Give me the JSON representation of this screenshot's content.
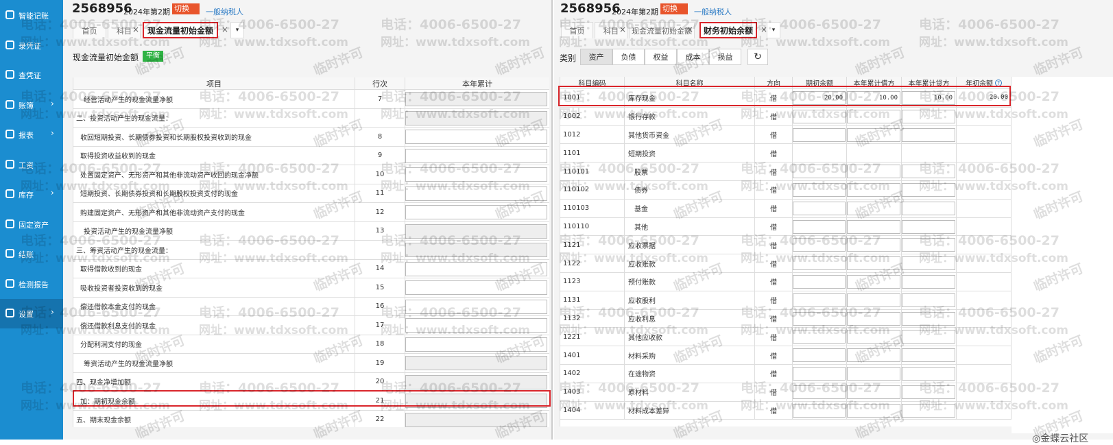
{
  "sidebar": {
    "items": [
      "智能记账",
      "录凭证",
      "查凭证",
      "账簿",
      "报表",
      "工资",
      "库存",
      "固定资产",
      "结账",
      "检测报告",
      "设置"
    ]
  },
  "left": {
    "header": {
      "account": "2568956",
      "period": "2024年第2期",
      "switch": "切换",
      "taxpayer": "一般纳税人"
    },
    "tabs": [
      "首页",
      "科目",
      "现金流量初始金额"
    ],
    "title": "现金流量初始金额",
    "status": "平衡",
    "table": {
      "columns": [
        "项目",
        "行次",
        "本年累计"
      ],
      "rows": [
        [
          "经营活动产生的现金流量净额",
          "7"
        ],
        [
          "二、投资活动产生的现金流量："
        ],
        [
          "收回短期投资、长期债券投资和长期股权投资收到的现金",
          "8"
        ],
        [
          "取得投资收益收到的现金",
          "9"
        ],
        [
          "处置固定资产、无形资产和其他非流动资产收回的现金净额",
          "10"
        ],
        [
          "短期投资、长期债券投资和长期股权投资支付的现金",
          "11"
        ],
        [
          "购建固定资产、无形资产和其他非流动资产支付的现金",
          "12"
        ],
        [
          "投资活动产生的现金流量净额",
          "13"
        ],
        [
          "三、筹资活动产生的现金流量："
        ],
        [
          "取得借款收到的现金",
          "14"
        ],
        [
          "吸收投资者投资收到的现金",
          "15"
        ],
        [
          "偿还借款本金支付的现金",
          "16"
        ],
        [
          "偿还借款利息支付的现金",
          "17"
        ],
        [
          "分配利润支付的现金",
          "18"
        ],
        [
          "筹资活动产生的现金流量净额",
          "19"
        ],
        [
          "四、现金净增加额",
          "20"
        ],
        [
          "加：期初现金余额",
          "21"
        ],
        [
          "五、期末现金余额",
          "22"
        ]
      ]
    }
  },
  "right": {
    "header": {
      "account": "2568956",
      "period": "2024年第2期",
      "switch": "切换",
      "taxpayer": "一般纳税人"
    },
    "tabs": [
      "首页",
      "科目",
      "现金流量初始金额",
      "财务初始余额"
    ],
    "category_label": "类别",
    "categories": [
      "资产",
      "负债",
      "权益",
      "成本",
      "损益"
    ],
    "table": {
      "columns": [
        "科目编码",
        "科目名称",
        "方向",
        "期初余额",
        "本年累计借方",
        "本年累计贷方",
        "年初余额"
      ],
      "rows": [
        [
          "1001",
          "库存现金",
          "借",
          "20.00",
          "10.00",
          "10.00",
          "20.00"
        ],
        [
          "1002",
          "银行存款",
          "借"
        ],
        [
          "1012",
          "其他货币资金",
          "借"
        ],
        [
          "1101",
          "短期投资",
          "借"
        ],
        [
          "110101",
          "股票",
          "借"
        ],
        [
          "110102",
          "债券",
          "借"
        ],
        [
          "110103",
          "基金",
          "借"
        ],
        [
          "110110",
          "其他",
          "借"
        ],
        [
          "1121",
          "应收票据",
          "借"
        ],
        [
          "1122",
          "应收账款",
          "借"
        ],
        [
          "1123",
          "预付账款",
          "借"
        ],
        [
          "1131",
          "应收股利",
          "借"
        ],
        [
          "1132",
          "应收利息",
          "借"
        ],
        [
          "1221",
          "其他应收款",
          "借"
        ],
        [
          "1401",
          "材料采购",
          "借"
        ],
        [
          "1402",
          "在途物资",
          "借"
        ],
        [
          "1403",
          "原材料",
          "借"
        ],
        [
          "1404",
          "材料成本差异",
          "借"
        ]
      ]
    }
  },
  "watermark": {
    "phone": "电话：4006-6500-27",
    "site": "网址：www.tdxsoft.com",
    "license": "临时许可"
  },
  "footer": "◎金蝶云社区"
}
